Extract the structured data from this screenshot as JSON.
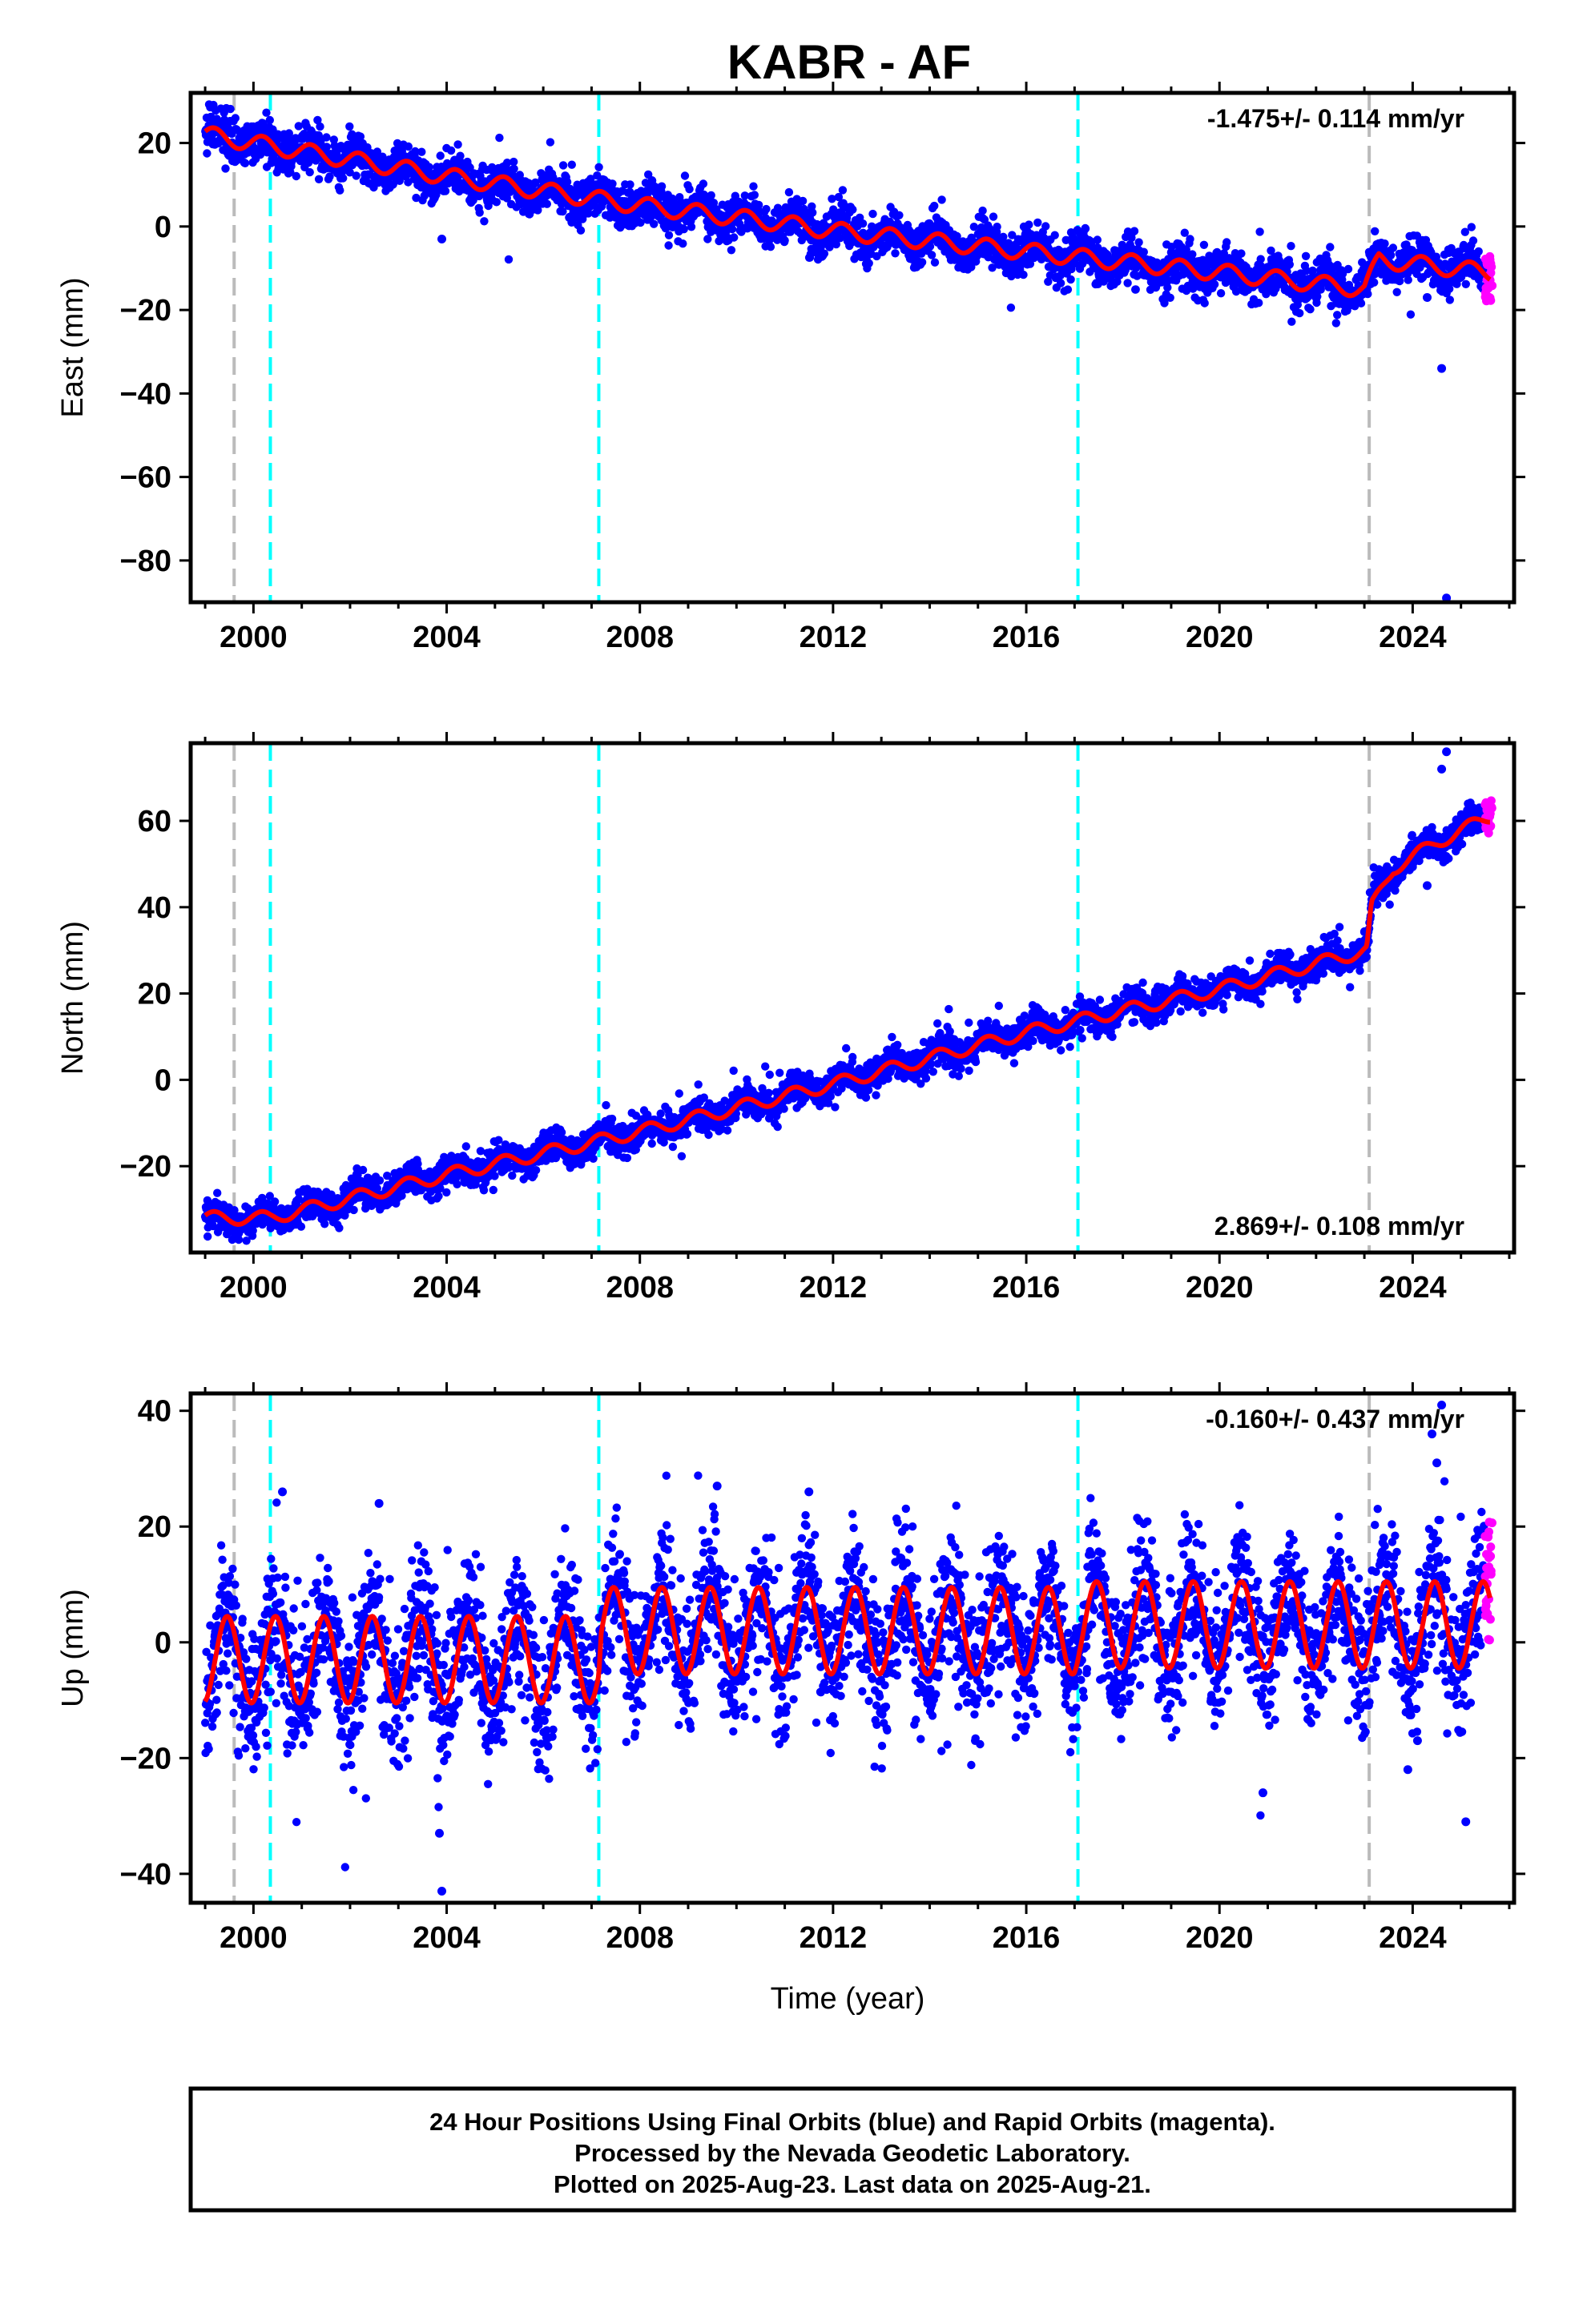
{
  "page_title": "KABR - AF",
  "x_axis_label": "Time (year)",
  "footer": {
    "lines": [
      "24 Hour Positions Using Final Orbits (blue) and Rapid Orbits (magenta).",
      "Processed by the Nevada Geodetic Laboratory.",
      "Plotted on 2025-Aug-23. Last data on 2025-Aug-21."
    ]
  },
  "colors": {
    "final_orbits": "#0000ff",
    "rapid_orbits": "#ff00ff",
    "model_fit": "#ff0000",
    "cyan_marker": "#00ffff",
    "gray_marker": "#bbbbbb"
  },
  "chart_data": [
    {
      "type": "scatter",
      "component": "east",
      "ylabel": "East (mm)",
      "xlim": [
        1998.7,
        2026.1
      ],
      "ylim": [
        -90,
        32
      ],
      "xticks": [
        2000,
        2004,
        2008,
        2012,
        2016,
        2020,
        2024
      ],
      "yticks": [
        20,
        0,
        -20,
        -40,
        -60,
        -80
      ],
      "rate_label": "-1.475+/- 0.114 mm/yr",
      "rate_label_position": "top-right",
      "vertical_markers": [
        {
          "x": 1999.6,
          "color": "gray"
        },
        {
          "x": 2000.35,
          "color": "cyan"
        },
        {
          "x": 2007.15,
          "color": "cyan"
        },
        {
          "x": 2017.07,
          "color": "cyan"
        },
        {
          "x": 2023.1,
          "color": "gray"
        }
      ],
      "trend_points": [
        [
          1999.0,
          22
        ],
        [
          2001.0,
          18
        ],
        [
          2004.0,
          12
        ],
        [
          2008.0,
          5
        ],
        [
          2010.8,
          1
        ],
        [
          2012.0,
          -1
        ],
        [
          2016.0,
          -6
        ],
        [
          2020.0,
          -11
        ],
        [
          2023.0,
          -15
        ],
        [
          2023.3,
          -8
        ],
        [
          2025.6,
          -11
        ]
      ],
      "seasonal_amplitude": 2,
      "noise": 2.5,
      "outliers": [
        [
          2003.9,
          -3
        ],
        [
          2024.6,
          -34
        ],
        [
          2024.7,
          -89
        ],
        [
          2024.3,
          -17
        ]
      ],
      "rapid_points": {
        "x_range": [
          2025.5,
          2025.65
        ],
        "y_range": [
          -18,
          -7
        ]
      }
    },
    {
      "type": "scatter",
      "component": "north",
      "ylabel": "North (mm)",
      "xlim": [
        1998.7,
        2026.1
      ],
      "ylim": [
        -40,
        78
      ],
      "xticks": [
        2000,
        2004,
        2008,
        2012,
        2016,
        2020,
        2024
      ],
      "yticks": [
        60,
        40,
        20,
        0,
        -20
      ],
      "rate_label": "2.869+/- 0.108 mm/yr",
      "rate_label_position": "bottom-right",
      "vertical_markers": [
        {
          "x": 1999.6,
          "color": "gray"
        },
        {
          "x": 2000.35,
          "color": "cyan"
        },
        {
          "x": 2007.15,
          "color": "cyan"
        },
        {
          "x": 2017.07,
          "color": "cyan"
        },
        {
          "x": 2023.1,
          "color": "gray"
        }
      ],
      "trend_points": [
        [
          1999.0,
          -32
        ],
        [
          2000.35,
          -32
        ],
        [
          2004.0,
          -22
        ],
        [
          2008.0,
          -12
        ],
        [
          2012.0,
          -1
        ],
        [
          2016.0,
          11
        ],
        [
          2020.0,
          21
        ],
        [
          2023.05,
          30
        ],
        [
          2023.15,
          40
        ],
        [
          2023.6,
          49
        ],
        [
          2024.5,
          55
        ],
        [
          2025.6,
          61
        ]
      ],
      "seasonal_amplitude": 1.5,
      "noise": 1.8,
      "outliers": [
        [
          2024.7,
          76
        ],
        [
          2024.6,
          72
        ],
        [
          2024.3,
          45
        ]
      ],
      "rapid_points": {
        "x_range": [
          2025.5,
          2025.65
        ],
        "y_range": [
          57,
          65
        ]
      }
    },
    {
      "type": "scatter",
      "component": "up",
      "ylabel": "Up (mm)",
      "xlim": [
        1998.7,
        2026.1
      ],
      "ylim": [
        -45,
        43
      ],
      "xticks": [
        2000,
        2004,
        2008,
        2012,
        2016,
        2020,
        2024
      ],
      "yticks": [
        40,
        20,
        0,
        -20,
        -40
      ],
      "rate_label": "-0.160+/- 0.437 mm/yr",
      "rate_label_position": "top-right",
      "vertical_markers": [
        {
          "x": 1999.6,
          "color": "gray"
        },
        {
          "x": 2000.35,
          "color": "cyan"
        },
        {
          "x": 2007.15,
          "color": "cyan"
        },
        {
          "x": 2017.07,
          "color": "cyan"
        },
        {
          "x": 2023.1,
          "color": "gray"
        }
      ],
      "trend_points": [
        [
          1999.0,
          -3
        ],
        [
          2007.15,
          -3
        ],
        [
          2007.2,
          2
        ],
        [
          2017.0,
          2
        ],
        [
          2017.1,
          3
        ],
        [
          2025.6,
          3
        ]
      ],
      "seasonal_amplitude": 7.5,
      "noise": 6,
      "outliers": [
        [
          2003.9,
          -43
        ],
        [
          2003.85,
          -33
        ],
        [
          2024.6,
          41
        ],
        [
          2024.4,
          36
        ],
        [
          2024.5,
          31
        ],
        [
          2020.9,
          -26
        ],
        [
          2025.1,
          -31
        ],
        [
          2009.6,
          27
        ],
        [
          2011.5,
          26
        ],
        [
          2000.6,
          26
        ],
        [
          2002.6,
          24
        ],
        [
          2023.9,
          -22
        ],
        [
          2024.1,
          -17
        ]
      ],
      "rapid_points": {
        "x_range": [
          2025.5,
          2025.65
        ],
        "y_range": [
          0,
          22
        ]
      }
    }
  ]
}
